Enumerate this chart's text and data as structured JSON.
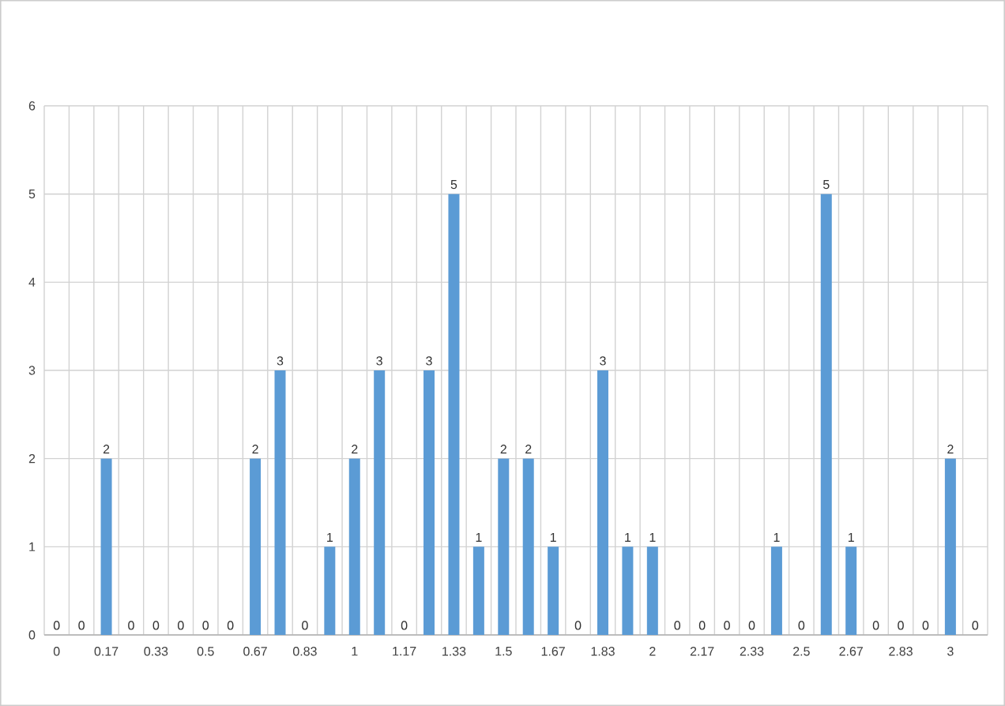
{
  "chart_data": {
    "type": "bar",
    "categories": [
      "0",
      null,
      "0.17",
      null,
      "0.33",
      null,
      "0.5",
      null,
      "0.67",
      null,
      "0.83",
      null,
      "1",
      null,
      "1.17",
      null,
      "1.33",
      null,
      "1.5",
      null,
      "1.67",
      null,
      "1.83",
      null,
      "2",
      null,
      "2.17",
      null,
      "2.33",
      null,
      "2.5",
      null,
      "2.67",
      null,
      "2.83",
      null,
      "3",
      null
    ],
    "values": [
      0,
      0,
      2,
      0,
      0,
      0,
      0,
      0,
      2,
      3,
      0,
      1,
      2,
      3,
      0,
      3,
      5,
      1,
      2,
      2,
      1,
      0,
      3,
      1,
      1,
      0,
      0,
      0,
      0,
      1,
      0,
      5,
      1,
      0,
      0,
      0,
      2,
      0
    ],
    "color": "#5b9bd5",
    "ylim": [
      0,
      6
    ],
    "yticks": [
      0,
      1,
      2,
      3,
      4,
      5,
      6
    ],
    "grid": true,
    "data_labels": true
  }
}
